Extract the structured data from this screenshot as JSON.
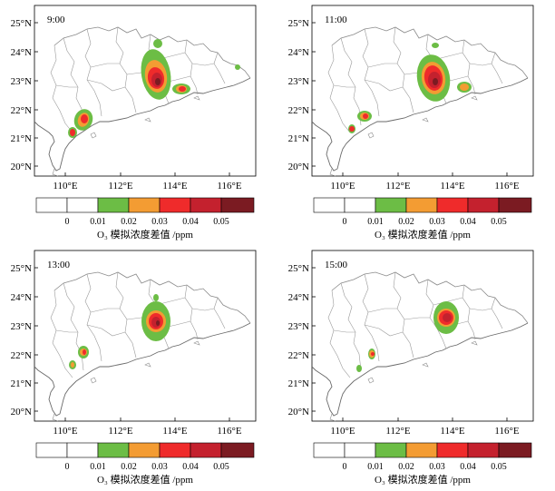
{
  "panels": [
    {
      "time": "9:00"
    },
    {
      "time": "11:00"
    },
    {
      "time": "13:00"
    },
    {
      "time": "15:00"
    }
  ],
  "lat_labels": [
    "25°N",
    "24°N",
    "23°N",
    "22°N",
    "21°N",
    "20°N"
  ],
  "lon_labels": [
    "110°E",
    "112°E",
    "114°E",
    "116°E"
  ],
  "colorbar": {
    "ticks": [
      "0",
      "0.01",
      "0.02",
      "0.03",
      "0.04",
      "0.05"
    ],
    "colors": [
      "#ffffff",
      "#ffffff",
      "#6cbd45",
      "#f39c33",
      "#ef2b2b",
      "#c4212e",
      "#7b1b22"
    ],
    "title": "O₃ 模拟浓度差值 /ppm"
  }
}
